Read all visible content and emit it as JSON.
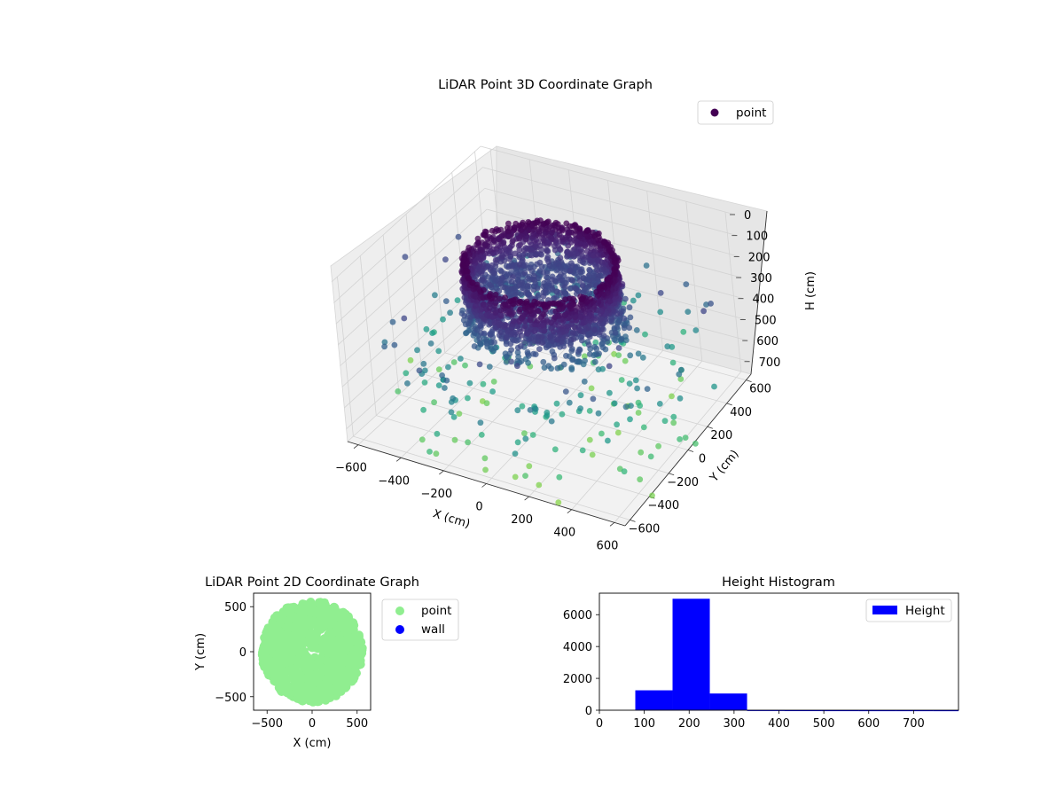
{
  "chart_data": [
    {
      "type": "scatter",
      "projection": "3d",
      "title": "LiDAR Point 3D Coordinate Graph",
      "xlabel": "X (cm)",
      "ylabel": "Y (cm)",
      "zlabel": "H (cm)",
      "xlim": [
        -650,
        650
      ],
      "ylim": [
        -650,
        650
      ],
      "zlim": [
        760,
        0
      ],
      "z_axis_inverted": true,
      "x_ticks": [
        "−600",
        "−400",
        "−200",
        "0",
        "200",
        "400",
        "600"
      ],
      "y_ticks": [
        "−600",
        "−400",
        "−200",
        "0",
        "200",
        "400",
        "600"
      ],
      "z_ticks": [
        "0",
        "100",
        "200",
        "300",
        "400",
        "500",
        "600",
        "700"
      ],
      "legend": {
        "position": "upper-right",
        "entries": [
          {
            "label": "point",
            "color": "#440154"
          }
        ]
      },
      "colormap": "viridis",
      "grid": true,
      "series": [
        {
          "name": "point",
          "description_of_distribution": "dense ring wall of radius ~330 at heights ~50–200, flat disk floor at height ~250, scattered points out to radius ~650 at heights 250–780"
        }
      ]
    },
    {
      "type": "scatter",
      "title": "LiDAR Point 2D Coordinate Graph",
      "xlabel": "X (cm)",
      "ylabel": "Y (cm)",
      "xlim": [
        -650,
        650
      ],
      "ylim": [
        -650,
        650
      ],
      "x_ticks": [
        "−500",
        "0",
        "500"
      ],
      "y_ticks": [
        "500",
        "0",
        "−500"
      ],
      "legend": {
        "position": "outside-right",
        "entries": [
          {
            "label": "point",
            "color": "#90ee90"
          },
          {
            "label": "wall",
            "color": "#0000ff"
          }
        ]
      },
      "grid": false,
      "series": [
        {
          "name": "point",
          "color": "#90ee90",
          "center": [
            0,
            0
          ],
          "radius": 520
        },
        {
          "name": "wall",
          "color": "#0000ff",
          "values": []
        }
      ]
    },
    {
      "type": "bar",
      "title": "Height Histogram",
      "xlabel": "",
      "ylabel": "",
      "xlim": [
        0,
        800
      ],
      "ylim": [
        0,
        7350
      ],
      "x_ticks": [
        "0",
        "100",
        "200",
        "300",
        "400",
        "500",
        "600",
        "700"
      ],
      "y_ticks": [
        "0",
        "2000",
        "4000",
        "6000"
      ],
      "legend": {
        "position": "upper-right",
        "entries": [
          {
            "label": "Height",
            "color": "#0000ff"
          }
        ]
      },
      "bins": [
        {
          "x0": 80,
          "x1": 163,
          "count": 1250
        },
        {
          "x0": 163,
          "x1": 246,
          "count": 7000
        },
        {
          "x0": 246,
          "x1": 329,
          "count": 1050
        },
        {
          "x0": 329,
          "x1": 412,
          "count": 15
        },
        {
          "x0": 412,
          "x1": 495,
          "count": 10
        },
        {
          "x0": 495,
          "x1": 578,
          "count": 8
        },
        {
          "x0": 578,
          "x1": 661,
          "count": 6
        },
        {
          "x0": 661,
          "x1": 744,
          "count": 6
        },
        {
          "x0": 744,
          "x1": 800,
          "count": 5
        }
      ],
      "color": "#0000ff"
    }
  ]
}
